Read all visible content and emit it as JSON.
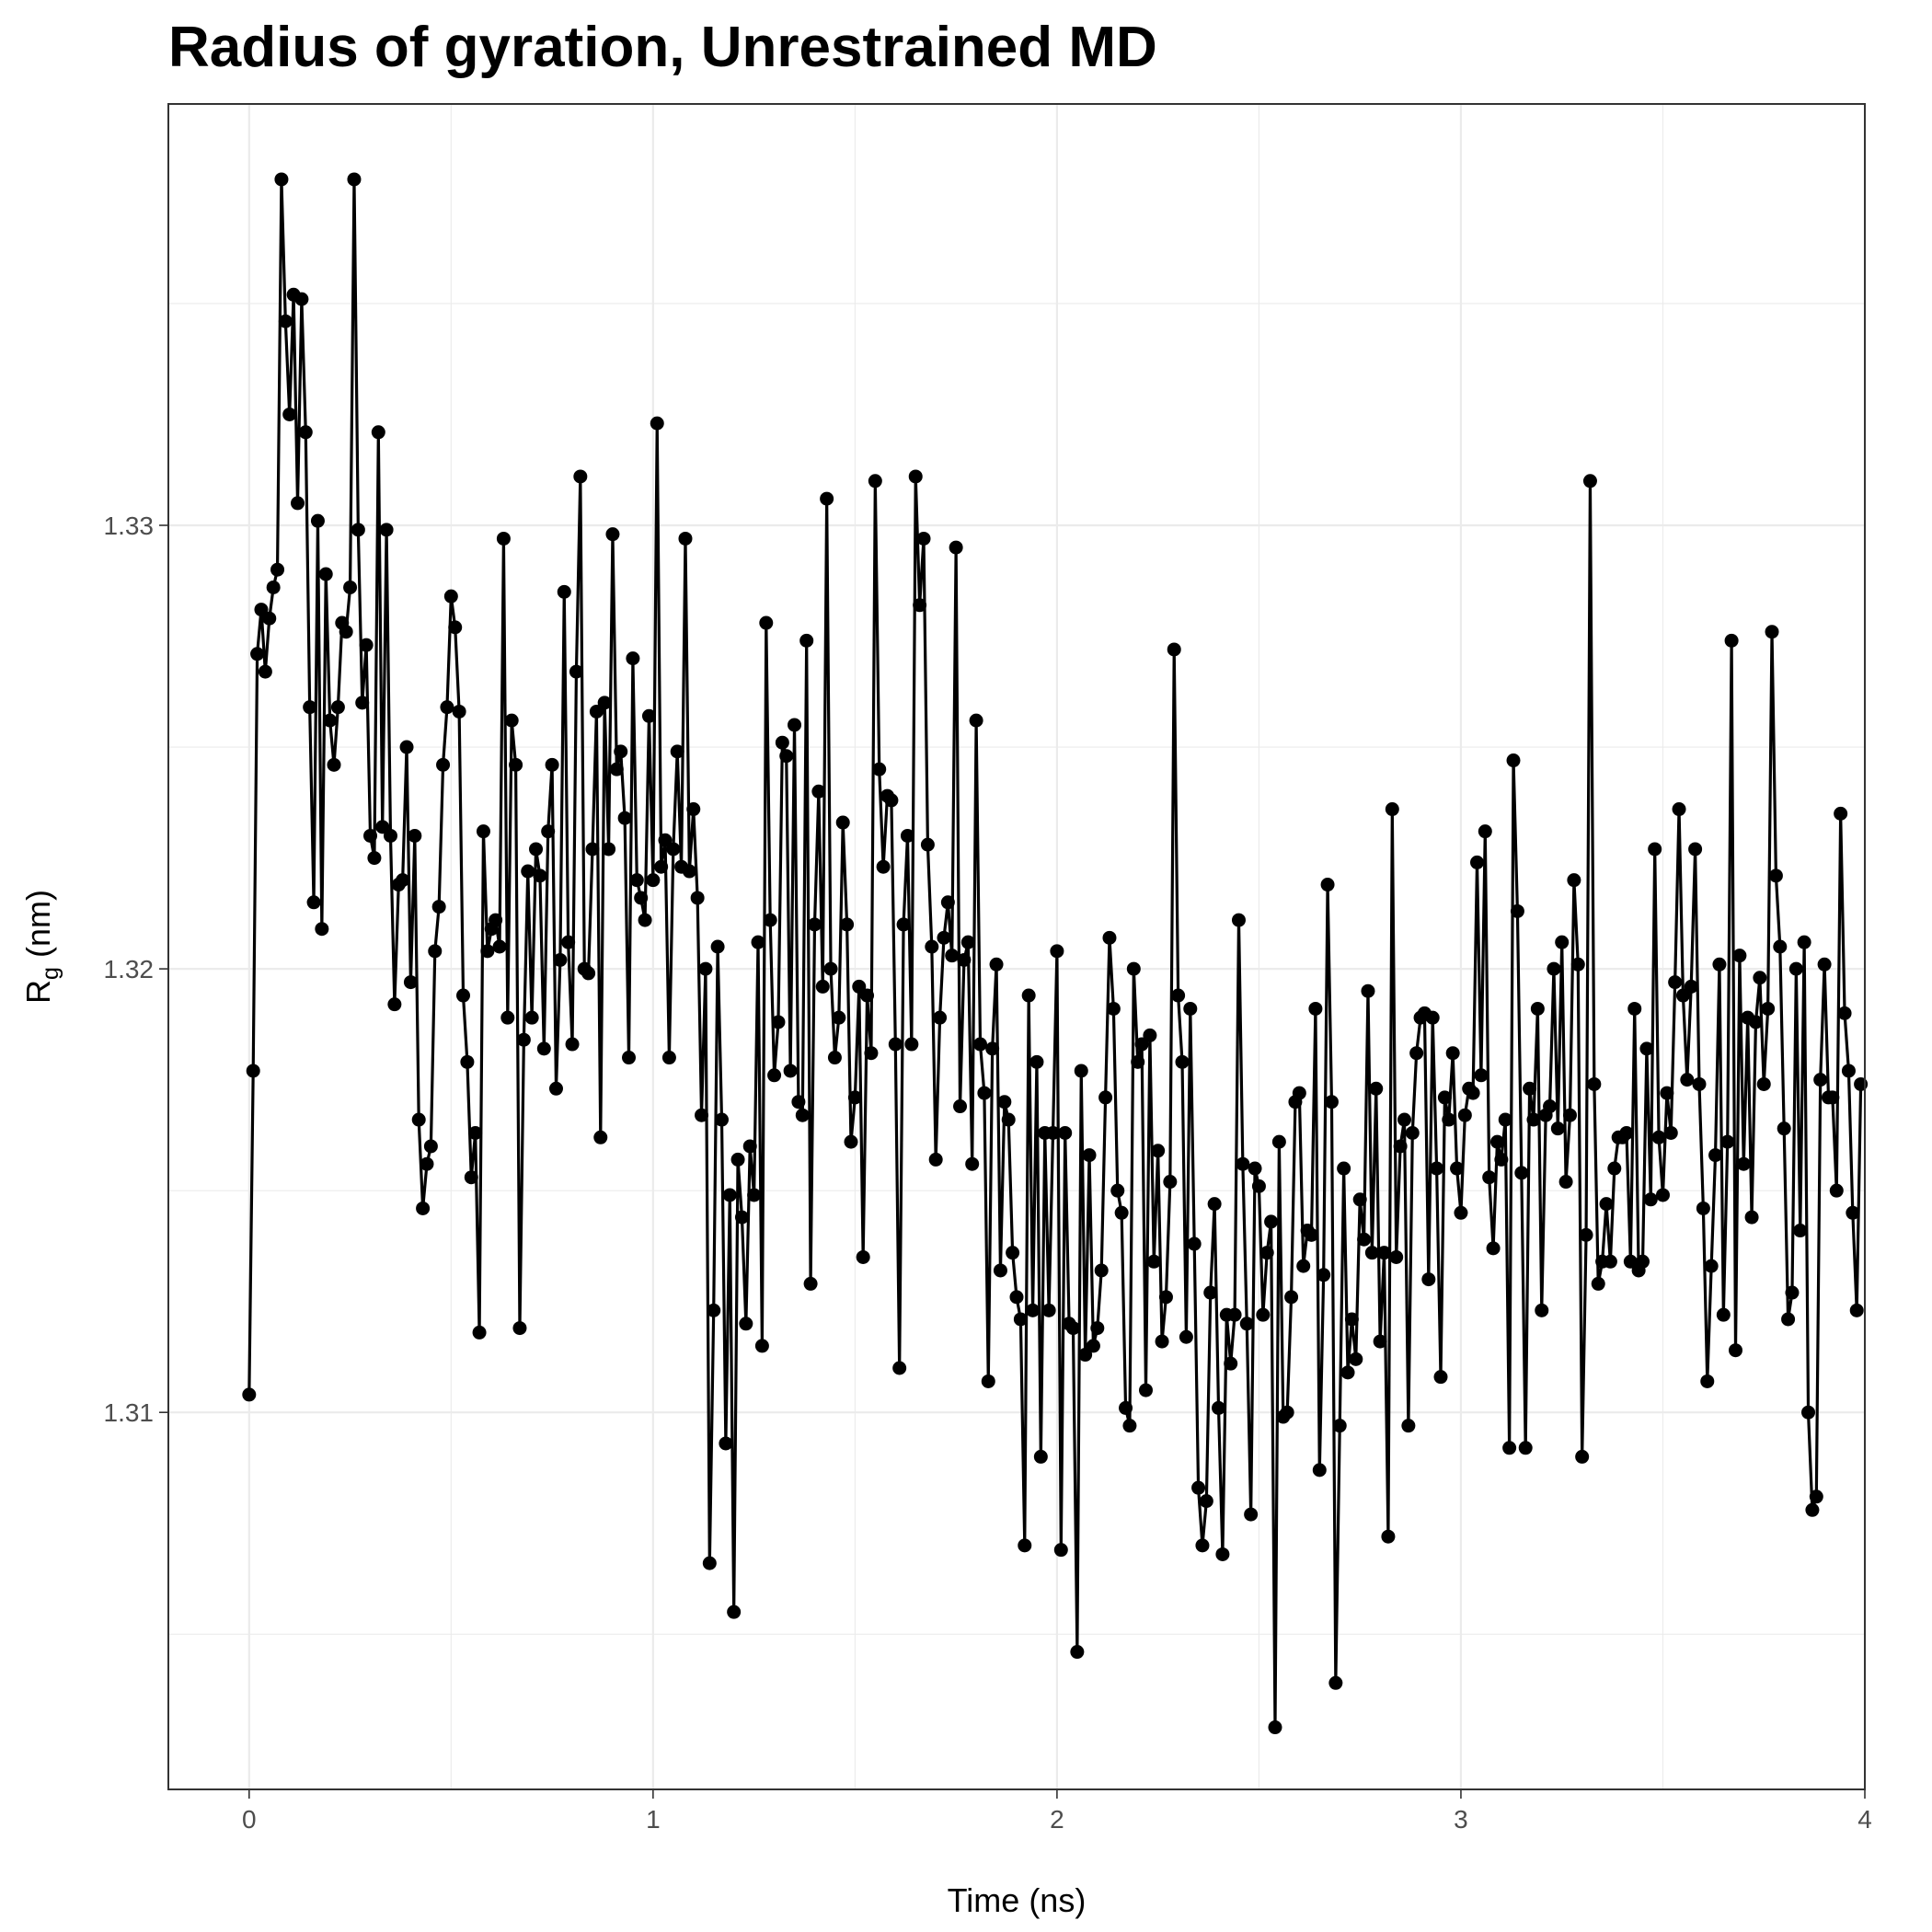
{
  "chart_data": {
    "type": "line",
    "title": "Radius of gyration, Unrestrained MD",
    "xlabel": "Time (ns)",
    "ylabel_main": "R",
    "ylabel_sub": "g",
    "ylabel_unit": " (nm)",
    "xlim": [
      -0.2,
      4.0
    ],
    "ylim": [
      1.3015,
      1.3395
    ],
    "x_ticks": [
      0,
      1,
      2,
      3,
      4
    ],
    "x_tick_labels": [
      "0",
      "1",
      "2",
      "3",
      "4"
    ],
    "y_ticks": [
      1.31,
      1.32,
      1.33
    ],
    "y_tick_labels": [
      "1.31",
      "1.32",
      "1.33"
    ],
    "grid": true,
    "legend": "none",
    "series": [
      {
        "color": "#000000",
        "markers": true,
        "x_start": 0,
        "x_step": 0.01,
        "values": [
          1.3104,
          1.3177,
          1.3271,
          1.3281,
          1.3267,
          1.3279,
          1.3286,
          1.329,
          1.3378,
          1.3346,
          1.3325,
          1.3352,
          1.3305,
          1.3351,
          1.3321,
          1.3259,
          1.3215,
          1.3301,
          1.3209,
          1.3289,
          1.3256,
          1.3246,
          1.3259,
          1.3278,
          1.3276,
          1.3286,
          1.3378,
          1.3299,
          1.326,
          1.3273,
          1.323,
          1.3225,
          1.3321,
          1.3232,
          1.3299,
          1.323,
          1.3192,
          1.3219,
          1.322,
          1.325,
          1.3197,
          1.323,
          1.3166,
          1.3146,
          1.3156,
          1.316,
          1.3204,
          1.3214,
          1.3246,
          1.3259,
          1.3284,
          1.3277,
          1.3258,
          1.3194,
          1.3179,
          1.3153,
          1.3163,
          1.3118,
          1.3231,
          1.3204,
          1.3209,
          1.3211,
          1.3205,
          1.3297,
          1.3189,
          1.3256,
          1.3246,
          1.3119,
          1.3184,
          1.3222,
          1.3189,
          1.3227,
          1.3221,
          1.3182,
          1.3231,
          1.3246,
          1.3173,
          1.3202,
          1.3285,
          1.3206,
          1.3183,
          1.3267,
          1.3311,
          1.32,
          1.3199,
          1.3227,
          1.3258,
          1.3162,
          1.326,
          1.3227,
          1.3298,
          1.3245,
          1.3249,
          1.3234,
          1.318,
          1.327,
          1.322,
          1.3216,
          1.3211,
          1.3257,
          1.322,
          1.3323,
          1.3223,
          1.3229,
          1.318,
          1.3227,
          1.3249,
          1.3223,
          1.3297,
          1.3222,
          1.3236,
          1.3216,
          1.3167,
          1.32,
          1.3066,
          1.3123,
          1.3205,
          1.3166,
          1.3093,
          1.3149,
          1.3055,
          1.3157,
          1.3144,
          1.312,
          1.316,
          1.3149,
          1.3206,
          1.3115,
          1.3278,
          1.3211,
          1.3176,
          1.3188,
          1.3251,
          1.3248,
          1.3177,
          1.3255,
          1.317,
          1.3167,
          1.3274,
          1.3129,
          1.321,
          1.324,
          1.3196,
          1.3306,
          1.32,
          1.318,
          1.3189,
          1.3233,
          1.321,
          1.3161,
          1.3171,
          1.3196,
          1.3135,
          1.3194,
          1.3181,
          1.331,
          1.3245,
          1.3223,
          1.3239,
          1.3238,
          1.3183,
          1.311,
          1.321,
          1.323,
          1.3183,
          1.3311,
          1.3282,
          1.3297,
          1.3228,
          1.3205,
          1.3157,
          1.3189,
          1.3207,
          1.3215,
          1.3203,
          1.3295,
          1.3169,
          1.3202,
          1.3206,
          1.3156,
          1.3256,
          1.3183,
          1.3172,
          1.3107,
          1.3182,
          1.3201,
          1.3132,
          1.317,
          1.3166,
          1.3136,
          1.3126,
          1.3121,
          1.307,
          1.3194,
          1.3123,
          1.3179,
          1.309,
          1.3163,
          1.3123,
          1.3163,
          1.3204,
          1.3069,
          1.3163,
          1.312,
          1.3119,
          1.3046,
          1.3177,
          1.3113,
          1.3158,
          1.3115,
          1.3119,
          1.3132,
          1.3171,
          1.3207,
          1.3191,
          1.315,
          1.3145,
          1.3101,
          1.3097,
          1.32,
          1.3179,
          1.3183,
          1.3105,
          1.3185,
          1.3134,
          1.3159,
          1.3116,
          1.3126,
          1.3152,
          1.3272,
          1.3194,
          1.3179,
          1.3117,
          1.3191,
          1.3138,
          1.3083,
          1.307,
          1.308,
          1.3127,
          1.3147,
          1.3101,
          1.3068,
          1.3122,
          1.3111,
          1.3122,
          1.3211,
          1.3156,
          1.312,
          1.3077,
          1.3155,
          1.3151,
          1.3122,
          1.3136,
          1.3143,
          1.3029,
          1.3161,
          1.3099,
          1.31,
          1.3126,
          1.317,
          1.3172,
          1.3133,
          1.3141,
          1.314,
          1.3191,
          1.3087,
          1.3131,
          1.3219,
          1.317,
          1.3039,
          1.3097,
          1.3155,
          1.3109,
          1.3121,
          1.3112,
          1.3148,
          1.3139,
          1.3195,
          1.3136,
          1.3173,
          1.3116,
          1.3136,
          1.3072,
          1.3236,
          1.3135,
          1.316,
          1.3166,
          1.3097,
          1.3163,
          1.3181,
          1.3189,
          1.319,
          1.313,
          1.3189,
          1.3155,
          1.3108,
          1.3171,
          1.3166,
          1.3181,
          1.3155,
          1.3145,
          1.3167,
          1.3173,
          1.3172,
          1.3224,
          1.3176,
          1.3231,
          1.3153,
          1.3137,
          1.3161,
          1.3157,
          1.3166,
          1.3092,
          1.3247,
          1.3213,
          1.3154,
          1.3092,
          1.3173,
          1.3166,
          1.3191,
          1.3123,
          1.3167,
          1.3169,
          1.32,
          1.3164,
          1.3206,
          1.3152,
          1.3167,
          1.322,
          1.3201,
          1.309,
          1.314,
          1.331,
          1.3174,
          1.3129,
          1.3134,
          1.3147,
          1.3134,
          1.3155,
          1.3162,
          1.3162,
          1.3163,
          1.3134,
          1.3191,
          1.3132,
          1.3134,
          1.3182,
          1.3148,
          1.3227,
          1.3162,
          1.3149,
          1.3172,
          1.3163,
          1.3197,
          1.3236,
          1.3194,
          1.3175,
          1.3196,
          1.3227,
          1.3174,
          1.3146,
          1.3107,
          1.3133,
          1.3158,
          1.3201,
          1.3122,
          1.3161,
          1.3274,
          1.3114,
          1.3203,
          1.3156,
          1.3189,
          1.3144,
          1.3188,
          1.3198,
          1.3174,
          1.3191,
          1.3276,
          1.3221,
          1.3205,
          1.3164,
          1.3121,
          1.3127,
          1.32,
          1.3141,
          1.3206,
          1.31,
          1.3078,
          1.3081,
          1.3175,
          1.3201,
          1.3171,
          1.3171,
          1.315,
          1.3235,
          1.319,
          1.3177,
          1.3145,
          1.3123,
          1.3174
        ]
      }
    ]
  }
}
